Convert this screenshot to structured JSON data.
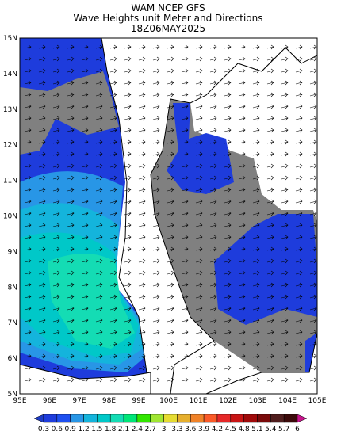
{
  "header": {
    "title_lines": [
      "WAM NCEP GFS",
      "Wave Heights unit Meter and Directions",
      "18Z06MAY2025"
    ]
  },
  "map": {
    "lat_labels": [
      "15N",
      "14N",
      "13N",
      "12N",
      "11N",
      "10N",
      "9N",
      "8N",
      "7N",
      "6N",
      "5N"
    ],
    "lon_labels": [
      "95E",
      "96E",
      "97E",
      "98E",
      "99E",
      "100E",
      "101E",
      "102E",
      "103E",
      "104E",
      "105E"
    ]
  },
  "legend": {
    "ticks": [
      0.3,
      0.6,
      0.9,
      1.2,
      1.5,
      1.8,
      2.1,
      2.4,
      2.7,
      3,
      3.3,
      3.6,
      3.9,
      4.2,
      4.5,
      4.8,
      5.1,
      5.4,
      5.7,
      6
    ],
    "colors": [
      "#1e3cc8",
      "#1e3cdc",
      "#1e50f0",
      "#2896e6",
      "#14b4dc",
      "#00c8c8",
      "#14dcb4",
      "#00e678",
      "#32e600",
      "#a0e632",
      "#e6dc32",
      "#e6af2d",
      "#f08228",
      "#fa5a28",
      "#e62828",
      "#c81414",
      "#a00a0a",
      "#7a0a0a",
      "#501e1e",
      "#3c0a0a",
      "#c8148c"
    ]
  }
}
